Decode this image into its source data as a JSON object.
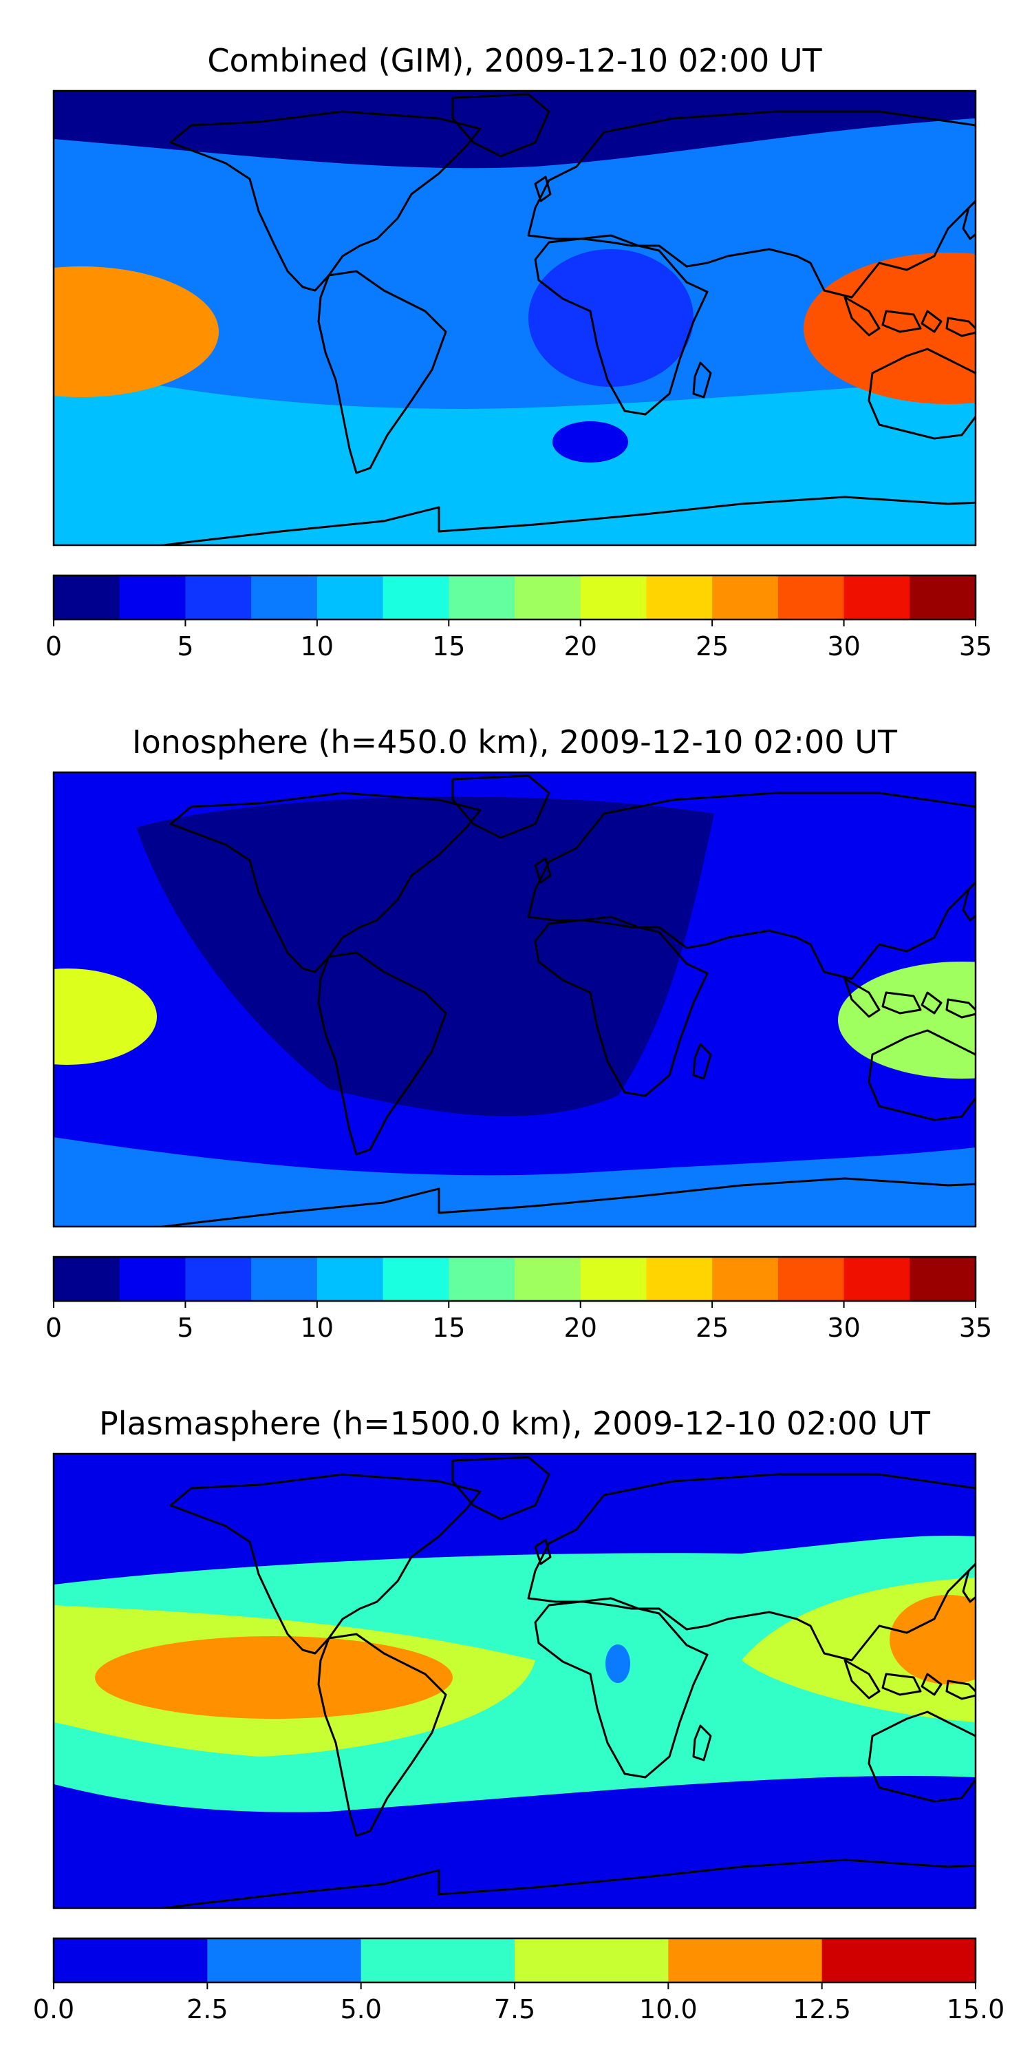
{
  "chart_data": [
    {
      "type": "heatmap",
      "title": "Combined (GIM), 2009-12-10 02:00 UT",
      "colorbar": {
        "levels": [
          0,
          2.5,
          5,
          7.5,
          10,
          12.5,
          15,
          17.5,
          20,
          22.5,
          25,
          27.5,
          30,
          32.5,
          35
        ],
        "colors": [
          "#00008f",
          "#0000f0",
          "#0d35ff",
          "#0a7aff",
          "#00c0ff",
          "#19ffe0",
          "#64ff9e",
          "#9eff5e",
          "#dcff1c",
          "#ffd400",
          "#ff9100",
          "#ff5200",
          "#f01000",
          "#9a0000"
        ],
        "tick_labels": [
          "0",
          "5",
          "10",
          "15",
          "20",
          "25",
          "30",
          "35"
        ]
      },
      "features": [
        {
          "name": "background",
          "level": 3
        },
        {
          "name": "north-polar-cap",
          "level": 0
        },
        {
          "name": "south-band",
          "level": 4
        },
        {
          "name": "pacific-crest-west",
          "level": 10
        },
        {
          "name": "pacific-crest-east",
          "level": 11
        },
        {
          "name": "africa-low",
          "level": 2
        },
        {
          "name": "south-atlantic-low",
          "level": 1
        }
      ]
    },
    {
      "type": "heatmap",
      "title": "Ionosphere  (h=450.0 km), 2009-12-10 02:00 UT",
      "colorbar": {
        "levels": [
          0,
          2.5,
          5,
          7.5,
          10,
          12.5,
          15,
          17.5,
          20,
          22.5,
          25,
          27.5,
          30,
          32.5,
          35
        ],
        "colors": [
          "#00008f",
          "#0000f0",
          "#0d35ff",
          "#0a7aff",
          "#00c0ff",
          "#19ffe0",
          "#64ff9e",
          "#9eff5e",
          "#dcff1c",
          "#ffd400",
          "#ff9100",
          "#ff5200",
          "#f01000",
          "#9a0000"
        ],
        "tick_labels": [
          "0",
          "5",
          "10",
          "15",
          "20",
          "25",
          "30",
          "35"
        ]
      },
      "features": [
        {
          "name": "background",
          "level": 1
        },
        {
          "name": "americas-atlantic-low",
          "level": 0
        },
        {
          "name": "south-band",
          "level": 3
        },
        {
          "name": "pacific-crest-west",
          "level": 8
        },
        {
          "name": "pacific-crest-east",
          "level": 7
        }
      ]
    },
    {
      "type": "heatmap",
      "title": "Plasmasphere (h=1500.0 km), 2009-12-10 02:00 UT",
      "colorbar": {
        "levels": [
          0.0,
          2.5,
          5.0,
          7.5,
          10.0,
          12.5,
          15.0
        ],
        "colors": [
          "#0000e8",
          "#0a7aff",
          "#32ffc8",
          "#c8ff32",
          "#ff9100",
          "#d10000"
        ],
        "tick_labels": [
          "0.0",
          "2.5",
          "5.0",
          "7.5",
          "10.0",
          "12.5",
          "15.0"
        ]
      },
      "features": [
        {
          "name": "background",
          "level": 0
        },
        {
          "name": "equatorial-belt",
          "level": 2
        },
        {
          "name": "americas-high",
          "level": 3
        },
        {
          "name": "south-america-max",
          "level": 4
        },
        {
          "name": "asia-high",
          "level": 3
        },
        {
          "name": "pacific-max",
          "level": 4
        },
        {
          "name": "somalia-spot",
          "level": 1
        }
      ]
    }
  ]
}
